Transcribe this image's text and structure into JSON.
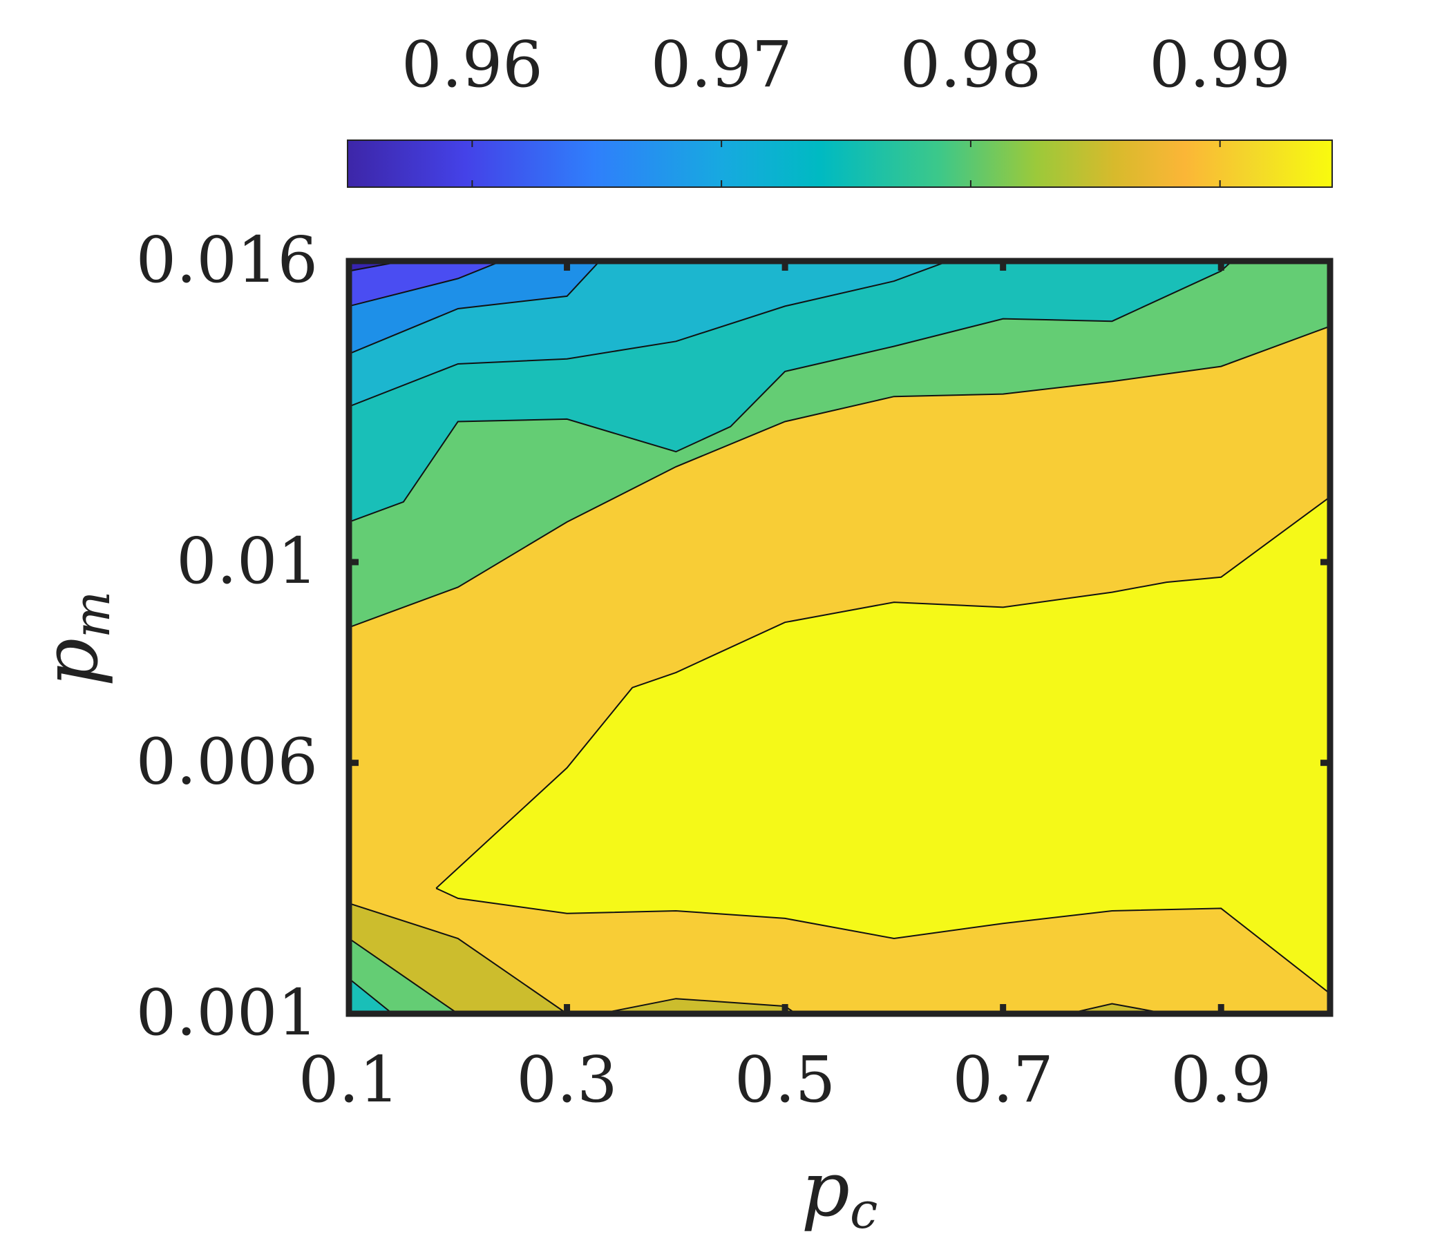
{
  "chart_data": {
    "type": "filled-contour",
    "title": "",
    "xlabel": "p",
    "xlabel_subscript": "c",
    "ylabel": "p",
    "ylabel_subscript": "m",
    "xlim": [
      0.1,
      1.0
    ],
    "ylim": [
      0.001,
      0.016
    ],
    "x_ticks": [
      0.1,
      0.3,
      0.5,
      0.7,
      0.9
    ],
    "x_tick_labels": [
      "0.1",
      "0.3",
      "0.5",
      "0.7",
      "0.9"
    ],
    "y_ticks": [
      0.001,
      0.006,
      0.01,
      0.016
    ],
    "y_tick_labels": [
      "0.001",
      "0.006",
      "0.01",
      "0.016"
    ],
    "colorbar": {
      "placement": "top",
      "range": [
        0.955,
        0.9945
      ],
      "ticks": [
        0.96,
        0.97,
        0.98,
        0.99
      ],
      "tick_labels": [
        "0.96",
        "0.97",
        "0.98",
        "0.99"
      ],
      "colormap": "parula"
    },
    "contour_levels": [
      0.9595,
      0.963,
      0.967,
      0.971,
      0.975,
      0.98,
      0.985,
      0.99
    ],
    "band_colors": [
      "#3724b0",
      "#4a4df2",
      "#1e90e8",
      "#1cb6cf",
      "#19bfb8",
      "#64cd74",
      "#ccbd2d",
      "#f8cd36",
      "#f5f918"
    ],
    "grid": false,
    "legend": "none",
    "contour_lines": [
      {
        "level": 0.963,
        "points": [
          [
            0.1,
            0.0158
          ],
          [
            0.15,
            0.016
          ]
        ]
      },
      {
        "level": 0.967,
        "points": [
          [
            0.1,
            0.0151
          ],
          [
            0.2,
            0.01565
          ],
          [
            0.24,
            0.016
          ]
        ]
      },
      {
        "level": 0.971,
        "points": [
          [
            0.1,
            0.01415
          ],
          [
            0.2,
            0.01505
          ],
          [
            0.3,
            0.0153
          ],
          [
            0.33,
            0.016
          ]
        ]
      },
      {
        "level": 0.975,
        "points": [
          [
            0.1,
            0.0131
          ],
          [
            0.2,
            0.01395
          ],
          [
            0.3,
            0.01405
          ],
          [
            0.4,
            0.0144
          ],
          [
            0.5,
            0.0151
          ],
          [
            0.6,
            0.0156
          ],
          [
            0.65,
            0.016
          ]
        ]
      },
      {
        "level": 0.98,
        "points": [
          [
            0.1,
            0.0108
          ],
          [
            0.15,
            0.0112
          ],
          [
            0.2,
            0.0128
          ],
          [
            0.3,
            0.01285
          ],
          [
            0.4,
            0.0122
          ],
          [
            0.45,
            0.0127
          ],
          [
            0.5,
            0.0138
          ],
          [
            0.6,
            0.0143
          ],
          [
            0.7,
            0.01485
          ],
          [
            0.8,
            0.0148
          ],
          [
            0.9,
            0.0158
          ],
          [
            0.91,
            0.016
          ]
        ]
      },
      {
        "level": 0.985,
        "points": [
          [
            0.1,
            0.0087
          ],
          [
            0.2,
            0.0095
          ],
          [
            0.3,
            0.0108
          ],
          [
            0.4,
            0.0119
          ],
          [
            0.5,
            0.0128
          ],
          [
            0.6,
            0.0133
          ],
          [
            0.7,
            0.01335
          ],
          [
            0.8,
            0.0136
          ],
          [
            0.9,
            0.0139
          ],
          [
            1.0,
            0.0147
          ]
        ]
      },
      {
        "level": 0.99,
        "points": [
          [
            0.18,
            0.0035
          ],
          [
            0.2,
            0.0033
          ],
          [
            0.3,
            0.003
          ],
          [
            0.4,
            0.00305
          ],
          [
            0.5,
            0.0029
          ],
          [
            0.6,
            0.0025
          ],
          [
            0.7,
            0.0028
          ],
          [
            0.8,
            0.00305
          ],
          [
            0.9,
            0.0031
          ],
          [
            1.0,
            0.0014
          ]
        ]
      },
      {
        "level": 0.99,
        "points": [
          [
            0.18,
            0.0035
          ],
          [
            0.3,
            0.0059
          ],
          [
            0.36,
            0.0075
          ],
          [
            0.4,
            0.0078
          ],
          [
            0.5,
            0.0088
          ],
          [
            0.6,
            0.0092
          ],
          [
            0.7,
            0.0091
          ],
          [
            0.8,
            0.0094
          ],
          [
            0.85,
            0.0096
          ],
          [
            0.9,
            0.0097
          ],
          [
            1.0,
            0.0113
          ]
        ]
      },
      {
        "level": 0.985,
        "points": [
          [
            0.1,
            0.0032
          ],
          [
            0.2,
            0.0025
          ],
          [
            0.3,
            0.001
          ]
        ]
      },
      {
        "level": 0.98,
        "points": [
          [
            0.1,
            0.0025
          ],
          [
            0.2,
            0.001
          ]
        ]
      },
      {
        "level": 0.975,
        "points": [
          [
            0.1,
            0.0017
          ],
          [
            0.14,
            0.001
          ]
        ]
      },
      {
        "level": 0.985,
        "points": [
          [
            0.33,
            0.001
          ],
          [
            0.4,
            0.0013
          ],
          [
            0.5,
            0.00115
          ],
          [
            0.51,
            0.001
          ]
        ]
      },
      {
        "level": 0.985,
        "points": [
          [
            0.76,
            0.001
          ],
          [
            0.8,
            0.0012
          ],
          [
            0.85,
            0.001
          ]
        ]
      }
    ]
  }
}
